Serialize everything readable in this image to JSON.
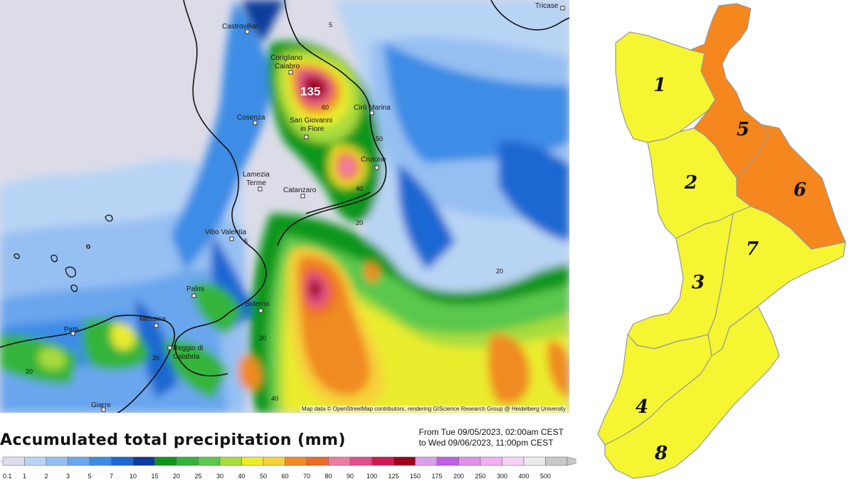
{
  "map": {
    "cities": [
      {
        "name": "Castrovillari"
      },
      {
        "name": "Corigliano"
      },
      {
        "name": "Calabro"
      },
      {
        "name": "Cirò Marina"
      },
      {
        "name": "Cosenza"
      },
      {
        "name": "San Giovanni"
      },
      {
        "name": "in Fiore"
      },
      {
        "name": "Crotone"
      },
      {
        "name": "Lamezia"
      },
      {
        "name": "Terme"
      },
      {
        "name": "Catanzaro"
      },
      {
        "name": "Vibo Valentia"
      },
      {
        "name": "Palmi"
      },
      {
        "name": "Siderno"
      },
      {
        "name": "Messina"
      },
      {
        "name": "Patti"
      },
      {
        "name": "Reggio di"
      },
      {
        "name": "Calabria"
      },
      {
        "name": "Giarre"
      },
      {
        "name": "Tricase"
      }
    ],
    "peak_value": "135",
    "contour_labels": [
      "5",
      "60",
      "50",
      "40",
      "20",
      "5",
      "20",
      "20",
      "20",
      "40",
      "20"
    ],
    "attribution": "Map data © OpenStreetMap contributors, rendering GIScience Research Group @ Heidelberg University"
  },
  "legend": {
    "title": "Accumulated total precipitation (mm)",
    "period_line1": "From Tue 09/05/2023, 02:00am CEST",
    "period_line2": "to Wed 09/06/2023, 11:00pm CEST",
    "ticks": [
      "0.1",
      "1",
      "2",
      "3",
      "5",
      "7",
      "10",
      "15",
      "20",
      "25",
      "30",
      "40",
      "50",
      "60",
      "70",
      "80",
      "90",
      "100",
      "125",
      "150",
      "175",
      "200",
      "250",
      "300",
      "400",
      "500"
    ],
    "colors": [
      "#dcdcec",
      "#b8d4f4",
      "#96c0f2",
      "#6aa6ee",
      "#3c8ce6",
      "#1c68d2",
      "#0c3c9c",
      "#10961e",
      "#36b43a",
      "#5ac84e",
      "#a8dc3c",
      "#eaec2e",
      "#f6d23a",
      "#f08a24",
      "#ec6a2a",
      "#f07aa0",
      "#e0508c",
      "#d01a54",
      "#a0001a",
      "#d8a0ea",
      "#c060e6",
      "#e090e8",
      "#f0b0f0",
      "#f6d0f6",
      "#eaeaea",
      "#c8c8c8"
    ]
  },
  "regions": {
    "zones": [
      {
        "label": "1",
        "color": "#f5f532"
      },
      {
        "label": "2",
        "color": "#f5f532"
      },
      {
        "label": "3",
        "color": "#f5f532"
      },
      {
        "label": "4",
        "color": "#f5f532"
      },
      {
        "label": "5",
        "color": "#f5871e"
      },
      {
        "label": "6",
        "color": "#f5871e"
      },
      {
        "label": "7",
        "color": "#f5f532"
      },
      {
        "label": "8",
        "color": "#f5f532"
      }
    ]
  }
}
